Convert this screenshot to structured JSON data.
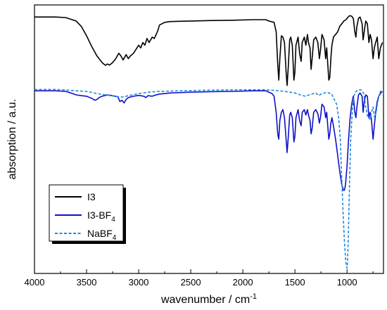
{
  "chart_data": {
    "type": "line",
    "xlabel": "wavenumber / cm",
    "xlabel_superscript": "-1",
    "ylabel": "absorption / a.u.",
    "xlim": [
      4000,
      650
    ],
    "x_reversed": true,
    "ylim": [
      0,
      1
    ],
    "y_ticks_labeled": false,
    "x_ticks": [
      "4000",
      "3500",
      "3000",
      "2500",
      "2000",
      "1500",
      "1000"
    ],
    "legend_position": "bottom-left",
    "series": [
      {
        "name": "I3",
        "name_subscript": "",
        "color": "#000000",
        "style": "solid",
        "points": [
          [
            4000,
            0.955
          ],
          [
            3800,
            0.955
          ],
          [
            3700,
            0.953
          ],
          [
            3600,
            0.94
          ],
          [
            3550,
            0.92
          ],
          [
            3500,
            0.885
          ],
          [
            3450,
            0.845
          ],
          [
            3400,
            0.81
          ],
          [
            3350,
            0.785
          ],
          [
            3320,
            0.775
          ],
          [
            3300,
            0.78
          ],
          [
            3280,
            0.776
          ],
          [
            3250,
            0.785
          ],
          [
            3220,
            0.8
          ],
          [
            3190,
            0.82
          ],
          [
            3170,
            0.81
          ],
          [
            3150,
            0.795
          ],
          [
            3120,
            0.815
          ],
          [
            3100,
            0.8
          ],
          [
            3080,
            0.81
          ],
          [
            3050,
            0.82
          ],
          [
            3000,
            0.85
          ],
          [
            2980,
            0.84
          ],
          [
            2960,
            0.86
          ],
          [
            2940,
            0.85
          ],
          [
            2920,
            0.875
          ],
          [
            2900,
            0.86
          ],
          [
            2870,
            0.88
          ],
          [
            2850,
            0.875
          ],
          [
            2820,
            0.9
          ],
          [
            2800,
            0.925
          ],
          [
            2750,
            0.935
          ],
          [
            2700,
            0.938
          ],
          [
            2500,
            0.94
          ],
          [
            2300,
            0.942
          ],
          [
            2100,
            0.943
          ],
          [
            1900,
            0.945
          ],
          [
            1780,
            0.945
          ],
          [
            1750,
            0.94
          ],
          [
            1700,
            0.935
          ],
          [
            1680,
            0.9
          ],
          [
            1665,
            0.78
          ],
          [
            1655,
            0.72
          ],
          [
            1645,
            0.8
          ],
          [
            1630,
            0.885
          ],
          [
            1615,
            0.88
          ],
          [
            1600,
            0.86
          ],
          [
            1585,
            0.75
          ],
          [
            1575,
            0.7
          ],
          [
            1565,
            0.76
          ],
          [
            1550,
            0.87
          ],
          [
            1540,
            0.88
          ],
          [
            1525,
            0.85
          ],
          [
            1510,
            0.72
          ],
          [
            1500,
            0.75
          ],
          [
            1490,
            0.85
          ],
          [
            1470,
            0.88
          ],
          [
            1455,
            0.82
          ],
          [
            1440,
            0.79
          ],
          [
            1430,
            0.86
          ],
          [
            1410,
            0.88
          ],
          [
            1395,
            0.85
          ],
          [
            1380,
            0.89
          ],
          [
            1370,
            0.86
          ],
          [
            1355,
            0.84
          ],
          [
            1345,
            0.76
          ],
          [
            1335,
            0.8
          ],
          [
            1320,
            0.87
          ],
          [
            1300,
            0.88
          ],
          [
            1280,
            0.86
          ],
          [
            1265,
            0.8
          ],
          [
            1255,
            0.83
          ],
          [
            1240,
            0.89
          ],
          [
            1220,
            0.87
          ],
          [
            1205,
            0.8
          ],
          [
            1195,
            0.84
          ],
          [
            1185,
            0.78
          ],
          [
            1175,
            0.72
          ],
          [
            1165,
            0.73
          ],
          [
            1155,
            0.8
          ],
          [
            1145,
            0.85
          ],
          [
            1130,
            0.88
          ],
          [
            1110,
            0.89
          ],
          [
            1090,
            0.9
          ],
          [
            1070,
            0.92
          ],
          [
            1050,
            0.93
          ],
          [
            1030,
            0.94
          ],
          [
            1010,
            0.945
          ],
          [
            990,
            0.955
          ],
          [
            975,
            0.96
          ],
          [
            955,
            0.958
          ],
          [
            940,
            0.95
          ],
          [
            925,
            0.9
          ],
          [
            915,
            0.88
          ],
          [
            905,
            0.92
          ],
          [
            890,
            0.95
          ],
          [
            875,
            0.955
          ],
          [
            855,
            0.93
          ],
          [
            845,
            0.87
          ],
          [
            835,
            0.9
          ],
          [
            820,
            0.94
          ],
          [
            805,
            0.93
          ],
          [
            790,
            0.86
          ],
          [
            778,
            0.89
          ],
          [
            765,
            0.87
          ],
          [
            750,
            0.8
          ],
          [
            738,
            0.84
          ],
          [
            725,
            0.86
          ],
          [
            710,
            0.88
          ],
          [
            695,
            0.8
          ],
          [
            680,
            0.84
          ],
          [
            670,
            0.85
          ],
          [
            660,
            0.86
          ]
        ]
      },
      {
        "name": "I3-BF",
        "name_subscript": "4",
        "color": "#1010c8",
        "style": "solid",
        "points": [
          [
            4000,
            0.68
          ],
          [
            3800,
            0.68
          ],
          [
            3700,
            0.678
          ],
          [
            3650,
            0.672
          ],
          [
            3600,
            0.665
          ],
          [
            3550,
            0.662
          ],
          [
            3500,
            0.66
          ],
          [
            3450,
            0.652
          ],
          [
            3420,
            0.645
          ],
          [
            3400,
            0.648
          ],
          [
            3380,
            0.655
          ],
          [
            3350,
            0.66
          ],
          [
            3300,
            0.665
          ],
          [
            3250,
            0.662
          ],
          [
            3200,
            0.658
          ],
          [
            3180,
            0.64
          ],
          [
            3160,
            0.645
          ],
          [
            3140,
            0.635
          ],
          [
            3120,
            0.648
          ],
          [
            3100,
            0.655
          ],
          [
            3050,
            0.66
          ],
          [
            3000,
            0.663
          ],
          [
            2950,
            0.66
          ],
          [
            2930,
            0.655
          ],
          [
            2910,
            0.662
          ],
          [
            2870,
            0.66
          ],
          [
            2850,
            0.663
          ],
          [
            2800,
            0.668
          ],
          [
            2700,
            0.672
          ],
          [
            2500,
            0.675
          ],
          [
            2300,
            0.677
          ],
          [
            2100,
            0.678
          ],
          [
            1900,
            0.68
          ],
          [
            1780,
            0.68
          ],
          [
            1750,
            0.675
          ],
          [
            1720,
            0.67
          ],
          [
            1700,
            0.66
          ],
          [
            1680,
            0.6
          ],
          [
            1665,
            0.52
          ],
          [
            1655,
            0.5
          ],
          [
            1645,
            0.57
          ],
          [
            1630,
            0.6
          ],
          [
            1615,
            0.61
          ],
          [
            1600,
            0.58
          ],
          [
            1585,
            0.5
          ],
          [
            1575,
            0.45
          ],
          [
            1565,
            0.5
          ],
          [
            1550,
            0.59
          ],
          [
            1540,
            0.6
          ],
          [
            1525,
            0.58
          ],
          [
            1510,
            0.49
          ],
          [
            1500,
            0.51
          ],
          [
            1490,
            0.58
          ],
          [
            1470,
            0.61
          ],
          [
            1455,
            0.57
          ],
          [
            1440,
            0.55
          ],
          [
            1430,
            0.6
          ],
          [
            1410,
            0.61
          ],
          [
            1395,
            0.59
          ],
          [
            1380,
            0.61
          ],
          [
            1370,
            0.59
          ],
          [
            1355,
            0.57
          ],
          [
            1345,
            0.52
          ],
          [
            1335,
            0.54
          ],
          [
            1320,
            0.6
          ],
          [
            1300,
            0.61
          ],
          [
            1280,
            0.595
          ],
          [
            1265,
            0.56
          ],
          [
            1255,
            0.58
          ],
          [
            1240,
            0.63
          ],
          [
            1220,
            0.62
          ],
          [
            1205,
            0.58
          ],
          [
            1195,
            0.6
          ],
          [
            1185,
            0.55
          ],
          [
            1175,
            0.5
          ],
          [
            1165,
            0.52
          ],
          [
            1155,
            0.56
          ],
          [
            1145,
            0.58
          ],
          [
            1130,
            0.55
          ],
          [
            1110,
            0.5
          ],
          [
            1090,
            0.44
          ],
          [
            1070,
            0.38
          ],
          [
            1050,
            0.33
          ],
          [
            1035,
            0.31
          ],
          [
            1025,
            0.31
          ],
          [
            1015,
            0.33
          ],
          [
            1000,
            0.4
          ],
          [
            985,
            0.5
          ],
          [
            970,
            0.58
          ],
          [
            955,
            0.63
          ],
          [
            940,
            0.66
          ],
          [
            925,
            0.6
          ],
          [
            915,
            0.58
          ],
          [
            905,
            0.62
          ],
          [
            890,
            0.665
          ],
          [
            875,
            0.672
          ],
          [
            855,
            0.66
          ],
          [
            845,
            0.6
          ],
          [
            835,
            0.64
          ],
          [
            820,
            0.665
          ],
          [
            805,
            0.66
          ],
          [
            790,
            0.58
          ],
          [
            778,
            0.6
          ],
          [
            765,
            0.57
          ],
          [
            750,
            0.5
          ],
          [
            738,
            0.55
          ],
          [
            725,
            0.6
          ],
          [
            710,
            0.64
          ],
          [
            695,
            0.66
          ],
          [
            680,
            0.67
          ],
          [
            670,
            0.675
          ],
          [
            660,
            0.677
          ]
        ]
      },
      {
        "name": "NaBF",
        "name_subscript": "4",
        "color": "#1e8ae0",
        "style": "dashed",
        "points": [
          [
            4000,
            0.685
          ],
          [
            3800,
            0.685
          ],
          [
            3700,
            0.683
          ],
          [
            3600,
            0.68
          ],
          [
            3500,
            0.678
          ],
          [
            3400,
            0.67
          ],
          [
            3300,
            0.664
          ],
          [
            3200,
            0.658
          ],
          [
            3150,
            0.657
          ],
          [
            3100,
            0.662
          ],
          [
            3000,
            0.67
          ],
          [
            2900,
            0.675
          ],
          [
            2800,
            0.678
          ],
          [
            2600,
            0.68
          ],
          [
            2400,
            0.682
          ],
          [
            2200,
            0.683
          ],
          [
            2000,
            0.684
          ],
          [
            1800,
            0.684
          ],
          [
            1700,
            0.682
          ],
          [
            1650,
            0.68
          ],
          [
            1600,
            0.678
          ],
          [
            1500,
            0.672
          ],
          [
            1450,
            0.665
          ],
          [
            1400,
            0.66
          ],
          [
            1350,
            0.667
          ],
          [
            1300,
            0.672
          ],
          [
            1270,
            0.662
          ],
          [
            1250,
            0.668
          ],
          [
            1200,
            0.674
          ],
          [
            1150,
            0.67
          ],
          [
            1100,
            0.63
          ],
          [
            1080,
            0.58
          ],
          [
            1065,
            0.5
          ],
          [
            1055,
            0.4
          ],
          [
            1045,
            0.3
          ],
          [
            1035,
            0.2
          ],
          [
            1025,
            0.12
          ],
          [
            1015,
            0.06
          ],
          [
            1008,
            0.03
          ],
          [
            1000,
            0.02
          ],
          [
            995,
            0.04
          ],
          [
            985,
            0.18
          ],
          [
            975,
            0.35
          ],
          [
            965,
            0.5
          ],
          [
            950,
            0.6
          ],
          [
            935,
            0.66
          ],
          [
            920,
            0.675
          ],
          [
            900,
            0.682
          ],
          [
            880,
            0.684
          ],
          [
            860,
            0.683
          ],
          [
            840,
            0.67
          ],
          [
            820,
            0.62
          ],
          [
            800,
            0.58
          ],
          [
            780,
            0.575
          ],
          [
            765,
            0.6
          ],
          [
            750,
            0.62
          ],
          [
            735,
            0.58
          ],
          [
            720,
            0.6
          ],
          [
            705,
            0.64
          ],
          [
            690,
            0.67
          ],
          [
            675,
            0.68
          ],
          [
            660,
            0.683
          ]
        ]
      }
    ]
  }
}
